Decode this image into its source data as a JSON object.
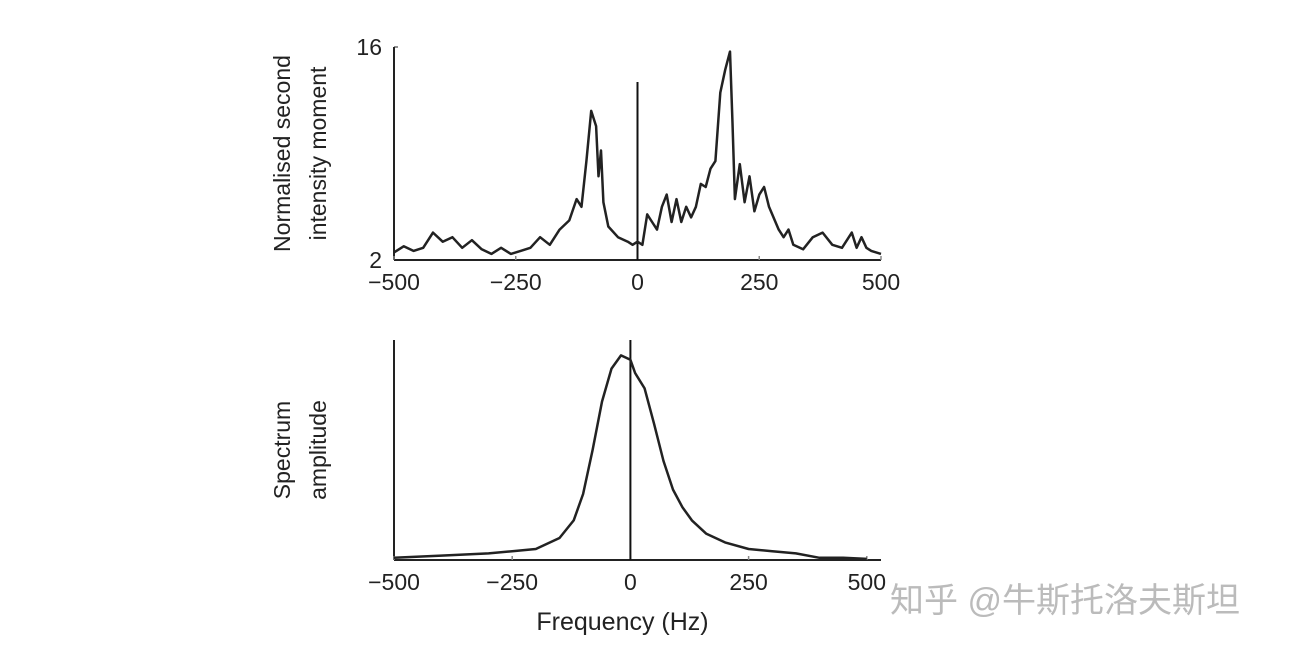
{
  "chart_data": [
    {
      "type": "line",
      "ylabel": [
        "Normalised second",
        "intensity moment"
      ],
      "x": [
        -500,
        -480,
        -460,
        -440,
        -420,
        -400,
        -380,
        -360,
        -340,
        -320,
        -300,
        -280,
        -260,
        -240,
        -220,
        -200,
        -180,
        -160,
        -140,
        -125,
        -115,
        -105,
        -95,
        -85,
        -80,
        -75,
        -70,
        -60,
        -40,
        -20,
        -10,
        0,
        10,
        20,
        30,
        40,
        50,
        60,
        70,
        80,
        90,
        100,
        110,
        120,
        130,
        140,
        150,
        160,
        170,
        180,
        190,
        195,
        200,
        210,
        220,
        230,
        240,
        250,
        260,
        270,
        290,
        300,
        310,
        320,
        340,
        360,
        380,
        400,
        420,
        440,
        450,
        460,
        470,
        480,
        500
      ],
      "values": [
        2.5,
        2.9,
        2.6,
        2.8,
        3.8,
        3.2,
        3.5,
        2.8,
        3.3,
        2.7,
        2.4,
        2.8,
        2.4,
        2.6,
        2.8,
        3.5,
        3.0,
        4.0,
        4.6,
        6.0,
        5.5,
        8.5,
        11.8,
        10.8,
        7.5,
        9.2,
        5.8,
        4.2,
        3.5,
        3.2,
        3.0,
        3.2,
        3.0,
        5.0,
        4.5,
        4.0,
        5.5,
        6.3,
        4.5,
        6.0,
        4.5,
        5.5,
        4.8,
        5.5,
        7.0,
        6.8,
        8.0,
        8.5,
        13.0,
        14.5,
        15.7,
        11.0,
        6.0,
        8.3,
        5.8,
        7.5,
        5.2,
        6.3,
        6.8,
        5.5,
        4.0,
        3.5,
        4.0,
        3.0,
        2.7,
        3.5,
        3.8,
        3.0,
        2.8,
        3.8,
        2.8,
        3.5,
        2.8,
        2.6,
        2.4
      ],
      "color": "#222222",
      "xlim": [
        -500,
        500
      ],
      "xticks": [
        {
          "value": -500,
          "label": "−500"
        },
        {
          "value": -250,
          "label": "−250"
        },
        0,
        250,
        500
      ],
      "ylim": [
        2,
        16
      ],
      "yticks": [
        2,
        16
      ]
    },
    {
      "type": "line",
      "ylabel": [
        "Spectrum",
        "amplitude"
      ],
      "xlabel": "Frequency (Hz)",
      "x": [
        -500,
        -400,
        -300,
        -250,
        -200,
        -150,
        -120,
        -100,
        -80,
        -60,
        -40,
        -20,
        0,
        10,
        30,
        50,
        70,
        90,
        110,
        130,
        160,
        200,
        250,
        300,
        350,
        400,
        450,
        500
      ],
      "values": [
        0.01,
        0.02,
        0.03,
        0.04,
        0.05,
        0.1,
        0.18,
        0.3,
        0.5,
        0.72,
        0.87,
        0.93,
        0.91,
        0.85,
        0.78,
        0.62,
        0.45,
        0.32,
        0.24,
        0.18,
        0.12,
        0.08,
        0.05,
        0.04,
        0.03,
        0.01,
        0.01,
        0.005
      ],
      "color": "#222222",
      "xlim": [
        -500,
        530
      ],
      "xticks": [
        {
          "value": -500,
          "label": "−500"
        },
        {
          "value": -250,
          "label": "−250"
        },
        0,
        250,
        500
      ],
      "ylim": [
        0,
        1
      ]
    }
  ],
  "watermark": "知乎 @牛斯托洛夫斯坦"
}
